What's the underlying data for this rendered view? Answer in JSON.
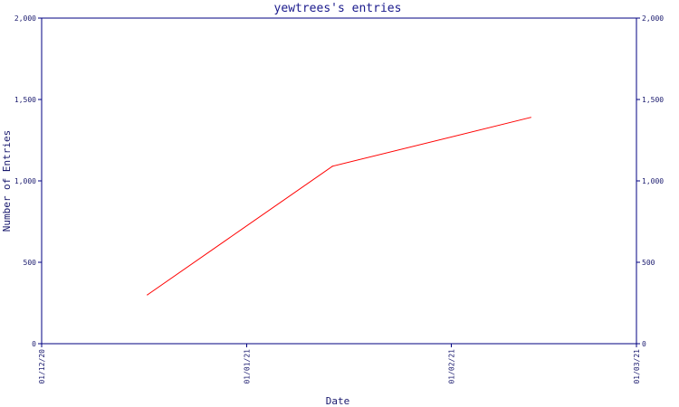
{
  "colors": {
    "axis": "#000080",
    "series": "#ff0000",
    "text": "#1a1a6e",
    "background": "#ffffff"
  },
  "chart_data": {
    "type": "line",
    "title": "yewtrees's entries",
    "xlabel": "Date",
    "ylabel": "Number of Entries",
    "xlim": [
      "2020-12-01",
      "2021-03-01"
    ],
    "ylim": [
      0,
      2000
    ],
    "grid": false,
    "legend": "none",
    "x_ticks": [
      {
        "value": "2020-12-01",
        "label": "01/12/20"
      },
      {
        "value": "2021-01-01",
        "label": "01/01/21"
      },
      {
        "value": "2021-02-01",
        "label": "01/02/21"
      },
      {
        "value": "2021-03-01",
        "label": "01/03/21"
      }
    ],
    "y_ticks": [
      {
        "value": 0,
        "label": "0"
      },
      {
        "value": 500,
        "label": "500"
      },
      {
        "value": 1000,
        "label": "1,000"
      },
      {
        "value": 1500,
        "label": "1,500"
      },
      {
        "value": 2000,
        "label": "2,000"
      }
    ],
    "series": [
      {
        "x": [
          "2020-12-17",
          "2021-01-14",
          "2021-02-13"
        ],
        "y": [
          300,
          1090,
          1390
        ]
      }
    ]
  }
}
